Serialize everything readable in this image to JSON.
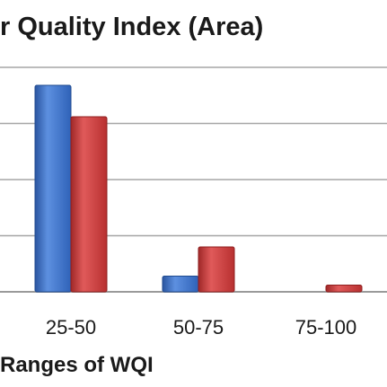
{
  "chart_data": {
    "type": "bar",
    "title": "r Quality Index (Area)",
    "xlabel": "Ranges of WQI",
    "ylabel": "",
    "categories": [
      "25-50",
      "50-75",
      "75-100"
    ],
    "series": [
      {
        "values": [
          92,
          7,
          0
        ],
        "color": "#3a6fc4"
      },
      {
        "values": [
          78,
          20,
          3
        ],
        "color": "#c43a3a"
      }
    ],
    "ylim": [
      0,
      100
    ],
    "gridlines": true,
    "legend": "none"
  }
}
